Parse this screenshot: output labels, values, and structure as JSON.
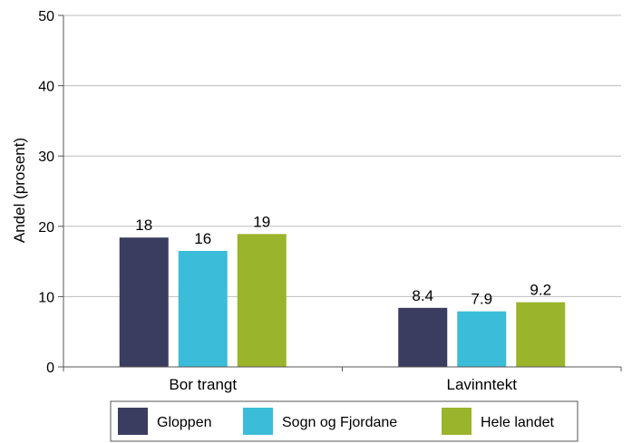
{
  "chart_data": {
    "type": "bar",
    "title": "",
    "xlabel": "",
    "ylabel": "Andel (prosent)",
    "ylim": [
      0,
      50
    ],
    "yticks": [
      0,
      10,
      20,
      30,
      40,
      50
    ],
    "grid": true,
    "legend_position": "bottom",
    "categories": [
      "Bor trangt",
      "Lavinntekt"
    ],
    "series": [
      {
        "name": "Gloppen",
        "values": [
          18.4,
          8.4
        ],
        "labels": [
          "18",
          "8.4"
        ],
        "color": "#3a3c60"
      },
      {
        "name": "Sogn og Fjordane",
        "values": [
          16.5,
          7.9
        ],
        "labels": [
          "16",
          "7.9"
        ],
        "color": "#3bbcd8"
      },
      {
        "name": "Hele landet",
        "values": [
          18.9,
          9.2
        ],
        "labels": [
          "19",
          "9.2"
        ],
        "color": "#9ab42b"
      }
    ]
  }
}
